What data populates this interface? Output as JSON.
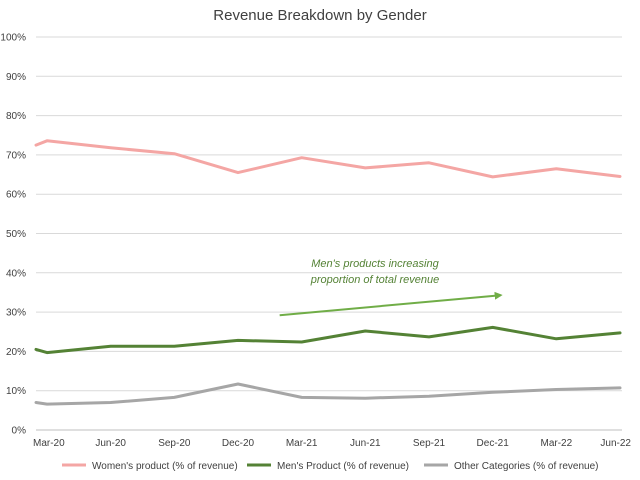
{
  "chart_data": {
    "type": "line",
    "title": "Revenue Breakdown by Gender",
    "xlabel": "",
    "ylabel": "",
    "ylim": [
      0,
      100
    ],
    "y_ticks": [
      "0%",
      "10%",
      "20%",
      "30%",
      "40%",
      "50%",
      "60%",
      "70%",
      "80%",
      "90%",
      "100%"
    ],
    "x_ticks": [
      "Mar-20",
      "Jun-20",
      "Sep-20",
      "Dec-20",
      "Mar-21",
      "Jun-21",
      "Sep-21",
      "Dec-21",
      "Mar-22",
      "Jun-22"
    ],
    "grid": true,
    "legend_position": "bottom",
    "x": [
      "Feb-20",
      "Mar-20",
      "Jun-20",
      "Sep-20",
      "Dec-20",
      "Mar-21",
      "Jun-21",
      "Sep-21",
      "Dec-21",
      "Mar-22",
      "Jun-22"
    ],
    "series": [
      {
        "name": "Women's product (% of revenue)",
        "color": "#F4A6A4",
        "values": [
          72.5,
          73.6,
          71.8,
          70.3,
          65.5,
          69.3,
          66.7,
          68.0,
          64.4,
          66.5,
          64.5
        ]
      },
      {
        "name": "Men's Product (% of revenue)",
        "color": "#548235",
        "values": [
          20.5,
          19.7,
          21.3,
          21.3,
          22.8,
          22.4,
          25.2,
          23.7,
          26.1,
          23.2,
          24.7
        ]
      },
      {
        "name": "Other Categories (% of revenue)",
        "color": "#A6A6A6",
        "values": [
          7.0,
          6.6,
          7.0,
          8.3,
          11.7,
          8.3,
          8.1,
          8.6,
          9.6,
          10.3,
          10.7
        ]
      }
    ],
    "annotation": {
      "text_lines": [
        "Men's products increasing",
        "proportion of total revenue"
      ],
      "color": "#548235",
      "arrow_color": "#70AD47",
      "arrow_from": [
        "Mar-21",
        29.2
      ],
      "arrow_to": [
        "Dec-21",
        34.3
      ]
    }
  }
}
